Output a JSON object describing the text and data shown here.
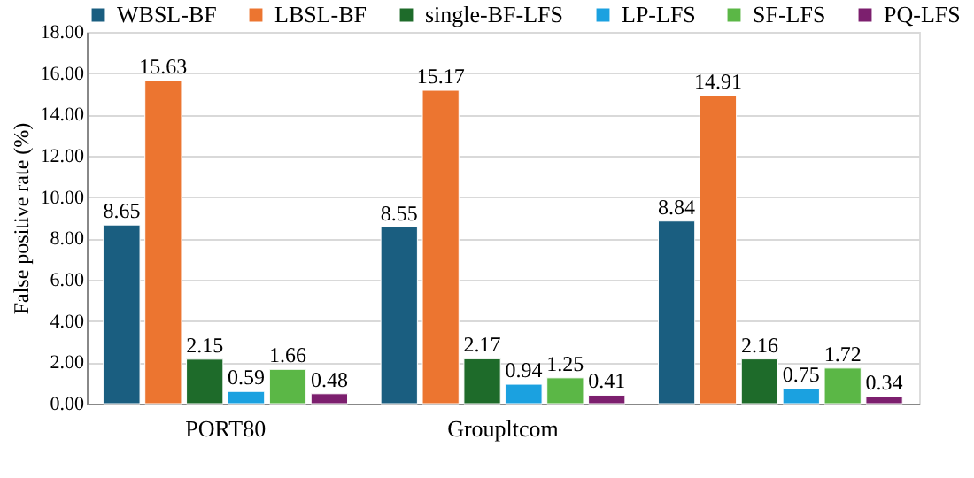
{
  "chart_data": {
    "type": "bar",
    "ylabel": "False positive rate (%)",
    "categories": [
      "PORT80",
      "Groupltcom",
      null
    ],
    "series": [
      {
        "name": "WBSL-BF",
        "color": "#1a5e80",
        "values": [
          8.65,
          8.55,
          8.84
        ]
      },
      {
        "name": "LBSL-BF",
        "color": "#ec7530",
        "values": [
          15.63,
          15.17,
          14.91
        ]
      },
      {
        "name": "single-BF-LFS",
        "color": "#1e6b2a",
        "values": [
          2.15,
          2.17,
          2.16
        ]
      },
      {
        "name": "LP-LFS",
        "color": "#1ba1e0",
        "values": [
          0.59,
          0.94,
          0.75
        ]
      },
      {
        "name": "SF-LFS",
        "color": "#5bb746",
        "values": [
          1.66,
          1.25,
          1.72
        ]
      },
      {
        "name": "PQ-LFS",
        "color": "#7c1f6e",
        "values": [
          0.48,
          0.41,
          0.34
        ]
      }
    ],
    "ylim": [
      0,
      18
    ],
    "yticks": [
      {
        "value": 0,
        "label": "0.00"
      },
      {
        "value": 2,
        "label": "2.00"
      },
      {
        "value": 4,
        "label": "4.00"
      },
      {
        "value": 6,
        "label": "6.00"
      },
      {
        "value": 8,
        "label": "8.00"
      },
      {
        "value": 10,
        "label": "10.00"
      },
      {
        "value": 12,
        "label": "12.00"
      },
      {
        "value": 14,
        "label": "14.00"
      },
      {
        "value": 16,
        "label": "16.00"
      },
      {
        "value": 18,
        "label": "18.00"
      }
    ],
    "grid": "y",
    "legend": "top",
    "data_labels": true
  }
}
